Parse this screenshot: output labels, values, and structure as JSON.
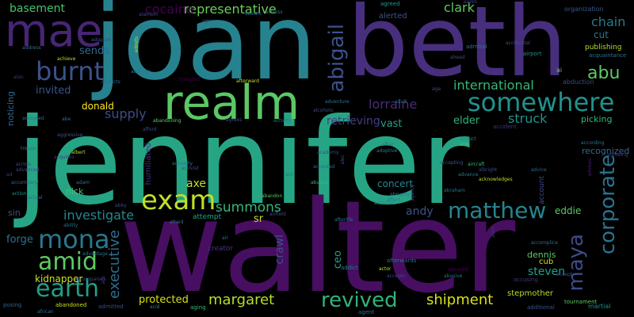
{
  "words": [
    {
      "text": "jennifer",
      "color": "#26a585"
    },
    {
      "text": "walter",
      "color": "#470e61"
    },
    {
      "text": "joan",
      "color": "#26828e"
    },
    {
      "text": "beth",
      "color": "#472f7d"
    },
    {
      "text": "realm",
      "color": "#5ac864"
    },
    {
      "text": "mae",
      "color": "#482576"
    },
    {
      "text": "exam",
      "color": "#c2df23"
    },
    {
      "text": "somewhere",
      "color": "#21918c"
    },
    {
      "text": "mona",
      "color": "#2a788e"
    },
    {
      "text": "amid",
      "color": "#5ec962"
    },
    {
      "text": "earth",
      "color": "#1fa088"
    },
    {
      "text": "burnt",
      "color": "#3b528b"
    },
    {
      "text": "matthew",
      "color": "#25858e"
    },
    {
      "text": "corporate",
      "color": "#2c718e"
    },
    {
      "text": "maya",
      "color": "#3e4a89"
    },
    {
      "text": "revived",
      "color": "#2fb47c"
    },
    {
      "text": "abigail",
      "color": "#3b528b"
    },
    {
      "text": "abu",
      "color": "#5ec962"
    },
    {
      "text": "executive",
      "color": "#2e6d8e"
    },
    {
      "text": "margaret",
      "color": "#b5de2b"
    },
    {
      "text": "shipment",
      "color": "#d8e219"
    },
    {
      "text": "summons",
      "color": "#35b779"
    },
    {
      "text": "investigate",
      "color": "#25858e"
    },
    {
      "text": "international",
      "color": "#35b779"
    },
    {
      "text": "representative",
      "color": "#6ccd5a"
    },
    {
      "text": "cocaine",
      "color": "#440154"
    },
    {
      "text": "struck",
      "color": "#21918c"
    },
    {
      "text": "supply",
      "color": "#3e4a89"
    },
    {
      "text": "lorraine",
      "color": "#472d7b"
    },
    {
      "text": "clark",
      "color": "#5ec962"
    },
    {
      "text": "chain",
      "color": "#2a788e"
    },
    {
      "text": "basement",
      "color": "#48c16e"
    },
    {
      "text": "steven",
      "color": "#1fa088"
    },
    {
      "text": "protected",
      "color": "#d8e219"
    },
    {
      "text": "axe",
      "color": "#c2df23"
    },
    {
      "text": "andy",
      "color": "#3b528b"
    },
    {
      "text": "retrieving",
      "color": "#433e85"
    },
    {
      "text": "vast",
      "color": "#20a486"
    },
    {
      "text": "elder",
      "color": "#31b57b"
    },
    {
      "text": "eddie",
      "color": "#5ac864"
    },
    {
      "text": "donald",
      "color": "#fde725"
    },
    {
      "text": "sends",
      "color": "#31688e"
    },
    {
      "text": "invited",
      "color": "#3b528b"
    },
    {
      "text": "crawl",
      "color": "#3b528b"
    },
    {
      "text": "forge",
      "color": "#2c718e"
    },
    {
      "text": "kidnapper",
      "color": "#cde11d"
    },
    {
      "text": "ceo",
      "color": "#1fa088"
    },
    {
      "text": "sr",
      "color": "#c2df23"
    },
    {
      "text": "concert",
      "color": "#25858e"
    },
    {
      "text": "recognized",
      "color": "#31688e"
    },
    {
      "text": "picking",
      "color": "#35b779"
    },
    {
      "text": "cut",
      "color": "#2a788e"
    },
    {
      "text": "noticing",
      "color": "#31688e"
    },
    {
      "text": "dennis",
      "color": "#5ec962"
    },
    {
      "text": "nick",
      "color": "#4ac16d"
    },
    {
      "text": "humiliated",
      "color": "#472f7d"
    },
    {
      "text": "stepmother",
      "color": "#b5de2b"
    },
    {
      "text": "sin",
      "color": "#3b528b"
    },
    {
      "text": "cub",
      "color": "#d8e219"
    },
    {
      "text": "publishing",
      "color": "#b5de2b"
    },
    {
      "text": "abduction",
      "color": "#3e4a89"
    },
    {
      "text": "organization",
      "color": "#39568c"
    },
    {
      "text": "ai",
      "color": "#5ec962"
    },
    {
      "text": "admiral",
      "color": "#2c718e"
    },
    {
      "text": "acquaintance",
      "color": "#2c718e"
    },
    {
      "text": "alerted",
      "color": "#3b528b"
    },
    {
      "text": "agreed",
      "color": "#1f9e89"
    },
    {
      "text": "aaron",
      "color": "#3e4a89"
    },
    {
      "text": "attempt",
      "color": "#3e4a89"
    },
    {
      "text": "creator",
      "color": "#20a486"
    },
    {
      "text": "posing",
      "color": "#46337f"
    },
    {
      "text": "abandoned",
      "color": "#31688e"
    },
    {
      "text": "afterwards",
      "color": "#cde11d"
    },
    {
      "text": "abused",
      "color": "#2c718e"
    },
    {
      "text": "accusing",
      "color": "#440154"
    },
    {
      "text": "tournament",
      "color": "#46337f"
    },
    {
      "text": "martial",
      "color": "#5ec962"
    },
    {
      "text": "aging",
      "color": "#21918c"
    },
    {
      "text": "acid",
      "color": "#35b779"
    },
    {
      "text": "admitted",
      "color": "#25858e"
    },
    {
      "text": "agent",
      "color": "#3e4a89"
    },
    {
      "text": "additional",
      "color": "#2c718e"
    },
    {
      "text": "accepts",
      "color": "#3b528b"
    },
    {
      "text": "actor",
      "color": "#3e4a89"
    },
    {
      "text": "addict",
      "color": "#c2df23"
    },
    {
      "text": "airport",
      "color": "#2a788e"
    },
    {
      "text": "abe",
      "color": "#21918c"
    },
    {
      "text": "accidental",
      "color": "#2c718e"
    },
    {
      "text": "aircraft",
      "color": "#3b528b"
    },
    {
      "text": "abduct",
      "color": "#35b779"
    },
    {
      "text": "aide",
      "color": "#25858e"
    },
    {
      "text": "affair",
      "color": "#48c16e"
    },
    {
      "text": "accepting",
      "color": "#2c718e"
    },
    {
      "text": "advance",
      "color": "#39568c"
    },
    {
      "text": "acknowledges",
      "color": "#2a788e"
    },
    {
      "text": "albright",
      "color": "#b5de2b"
    },
    {
      "text": "abraham",
      "color": "#3e4a89"
    },
    {
      "text": "advice",
      "color": "#2c718e"
    },
    {
      "text": "agreeing",
      "color": "#31688e"
    },
    {
      "text": "advises",
      "color": "#433e85"
    },
    {
      "text": "according",
      "color": "#482173"
    },
    {
      "text": "accident",
      "color": "#2a788e"
    },
    {
      "text": "thwarted",
      "color": "#46337f"
    },
    {
      "text": "abortion",
      "color": "#440154"
    },
    {
      "text": "adoptive",
      "color": "#2a788e"
    },
    {
      "text": "accepted",
      "color": "#25858e"
    },
    {
      "text": "academy",
      "color": "#31688e"
    },
    {
      "text": "act",
      "color": "#3e4a89"
    },
    {
      "text": "abruptly",
      "color": "#31688e"
    },
    {
      "text": "activates",
      "color": "#2c718e"
    },
    {
      "text": "abandoning",
      "color": "#25858e"
    },
    {
      "text": "actress",
      "color": "#5ec962"
    },
    {
      "text": "actuality",
      "color": "#2c718e"
    },
    {
      "text": "activist",
      "color": "#2c718e"
    },
    {
      "text": "activity",
      "color": "#3b528b"
    },
    {
      "text": "alcoholic",
      "color": "#2c718e"
    },
    {
      "text": "adventure",
      "color": "#3e4a89"
    },
    {
      "text": "adult",
      "color": "#2a788e"
    },
    {
      "text": "address",
      "color": "#2c718e"
    },
    {
      "text": "achieve",
      "color": "#2c718e"
    },
    {
      "text": "adopted",
      "color": "#c2df23"
    },
    {
      "text": "across",
      "color": "#3b528b"
    },
    {
      "text": "advanced",
      "color": "#3e4a89"
    },
    {
      "text": "accompany",
      "color": "#3e4a89"
    },
    {
      "text": "action",
      "color": "#31688e"
    },
    {
      "text": "actual",
      "color": "#21918c"
    },
    {
      "text": "accepted",
      "color": "#2c718e"
    },
    {
      "text": "aggressive",
      "color": "#2c718e"
    },
    {
      "text": "albert",
      "color": "#3b528b"
    },
    {
      "text": "acquires",
      "color": "#b5de2b"
    },
    {
      "text": "adam",
      "color": "#46337f"
    },
    {
      "text": "abby",
      "color": "#2c718e"
    },
    {
      "text": "ability",
      "color": "#3e4a89"
    },
    {
      "text": "accompanies",
      "color": "#2c718e"
    },
    {
      "text": "advantage",
      "color": "#3e4a89"
    },
    {
      "text": "african",
      "color": "#2c718e"
    },
    {
      "text": "airfield",
      "color": "#2c718e"
    },
    {
      "text": "abandon",
      "color": "#3e4a89"
    },
    {
      "text": "afraid",
      "color": "#5ac864"
    },
    {
      "text": "affect",
      "color": "#2c718e"
    },
    {
      "text": "afterlife",
      "color": "#2c718e"
    },
    {
      "text": "afterward",
      "color": "#2c718e"
    },
    {
      "text": "swears",
      "color": "#c2df23"
    },
    {
      "text": "ago",
      "color": "#2c718e"
    },
    {
      "text": "alamein",
      "color": "#3e4a89"
    },
    {
      "text": "admits",
      "color": "#3e4a89"
    },
    {
      "text": "afford",
      "color": "#c2df23"
    },
    {
      "text": "agrees",
      "color": "#3e4a89"
    },
    {
      "text": "abducts",
      "color": "#3e4a89"
    },
    {
      "text": "alan",
      "color": "#2c718e"
    },
    {
      "text": "air",
      "color": "#46337f"
    },
    {
      "text": "age",
      "color": "#2c718e"
    },
    {
      "text": "ahead",
      "color": "#3e4a89"
    },
    {
      "text": "abusive",
      "color": "#3e4a89"
    },
    {
      "text": "alert",
      "color": "#2c718e"
    },
    {
      "text": "accomplice",
      "color": "#46337f"
    },
    {
      "text": "account",
      "color": "#2c718e"
    },
    {
      "text": "troupe",
      "color": "#3e4a89"
    },
    {
      "text": "ad",
      "color": "#2c718e"
    },
    {
      "text": "ace",
      "color": "#46337f"
    },
    {
      "text": "accept",
      "color": "#46337f"
    },
    {
      "text": "abused",
      "color": "#3b528b"
    },
    {
      "text": "agency",
      "color": "#35b779"
    },
    {
      "text": "alec",
      "color": "#3e4a89"
    },
    {
      "text": "absence",
      "color": "#3e4a89"
    }
  ]
}
